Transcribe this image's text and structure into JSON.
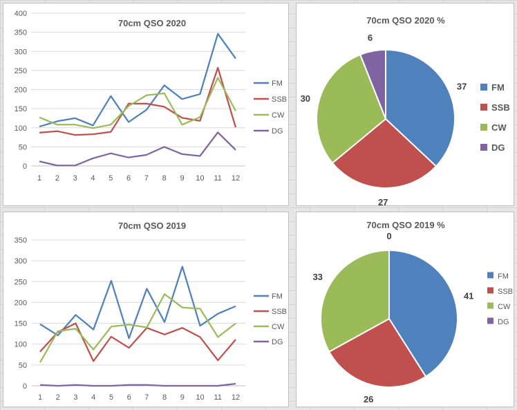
{
  "colors": {
    "FM": "#4f81bd",
    "SSB": "#c0504d",
    "CW": "#9bbb59",
    "DG": "#8064a2"
  },
  "chart_data": [
    {
      "type": "line",
      "title": "70cm QSO 2020",
      "xlabel": "",
      "ylabel": "",
      "categories": [
        "1",
        "2",
        "3",
        "4",
        "5",
        "6",
        "7",
        "8",
        "9",
        "10",
        "11",
        "12"
      ],
      "ylim": [
        0,
        400
      ],
      "yticks": [
        "0",
        "50",
        "100",
        "150",
        "200",
        "250",
        "300",
        "350",
        "400"
      ],
      "grid": true,
      "legend": "right",
      "series": [
        {
          "name": "FM",
          "values": [
            103,
            117,
            125,
            106,
            183,
            115,
            147,
            211,
            175,
            188,
            346,
            281
          ]
        },
        {
          "name": "SSB",
          "values": [
            87,
            91,
            81,
            83,
            89,
            163,
            163,
            155,
            126,
            118,
            257,
            101
          ]
        },
        {
          "name": "CW",
          "values": [
            127,
            108,
            108,
            99,
            108,
            157,
            185,
            190,
            108,
            128,
            231,
            144
          ]
        },
        {
          "name": "DG",
          "values": [
            12,
            1,
            1,
            20,
            33,
            22,
            29,
            50,
            31,
            26,
            88,
            42
          ]
        }
      ]
    },
    {
      "type": "pie",
      "title": "70cm QSO 2020 %",
      "legend": "right",
      "categories": [
        "FM",
        "SSB",
        "CW",
        "DG"
      ],
      "values": [
        37,
        27,
        30,
        6
      ],
      "labels": [
        "37",
        "27",
        "30",
        "6"
      ]
    },
    {
      "type": "line",
      "title": "70cm QSO 2019",
      "xlabel": "",
      "ylabel": "",
      "categories": [
        "1",
        "2",
        "3",
        "4",
        "5",
        "6",
        "7",
        "8",
        "9",
        "10",
        "11",
        "12"
      ],
      "ylim": [
        0,
        350
      ],
      "yticks": [
        "0",
        "50",
        "100",
        "150",
        "200",
        "250",
        "300",
        "350"
      ],
      "grid": true,
      "legend": "right",
      "series": [
        {
          "name": "FM",
          "values": [
            148,
            121,
            170,
            135,
            252,
            114,
            233,
            153,
            286,
            144,
            173,
            191
          ]
        },
        {
          "name": "SSB",
          "values": [
            82,
            129,
            150,
            59,
            118,
            91,
            139,
            123,
            139,
            117,
            61,
            111
          ]
        },
        {
          "name": "CW",
          "values": [
            56,
            131,
            137,
            87,
            142,
            147,
            140,
            220,
            188,
            185,
            117,
            150
          ]
        },
        {
          "name": "DG",
          "values": [
            2,
            0,
            2,
            0,
            0,
            2,
            2,
            0,
            0,
            0,
            0,
            5
          ]
        }
      ]
    },
    {
      "type": "pie",
      "title": "70cm QSO 2019 %",
      "legend": "right",
      "categories": [
        "FM",
        "SSB",
        "CW",
        "DG"
      ],
      "values": [
        41,
        26,
        33,
        0
      ],
      "labels": [
        "41",
        "26",
        "33",
        "0"
      ]
    }
  ]
}
